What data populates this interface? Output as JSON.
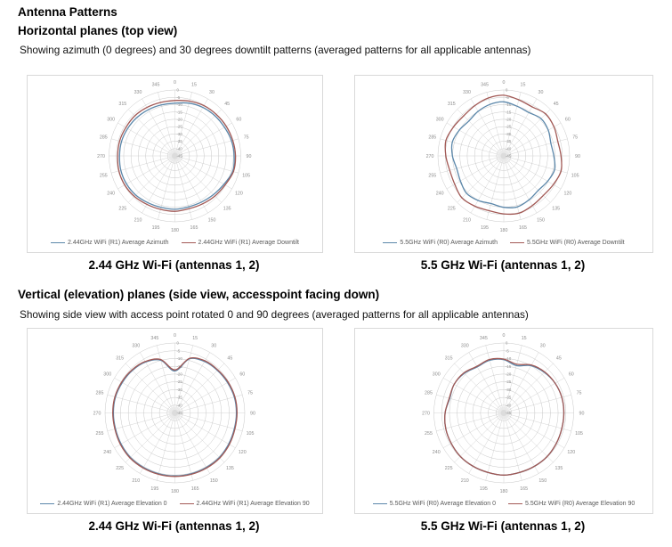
{
  "page": {
    "title": "Antenna Patterns",
    "sections": [
      {
        "heading": "Horizontal planes (top view)",
        "subheading": "Showing azimuth (0 degrees) and 30 degrees downtilt patterns (averaged patterns for all applicable antennas)"
      },
      {
        "heading": "Vertical (elevation) planes (side view, accesspoint facing down)",
        "subheading": "Showing side view with access point rotated 0 and 90 degrees (averaged patterns for all applicable antennas)"
      }
    ]
  },
  "colors": {
    "series_blue": "#5b87aa",
    "series_red": "#a25955",
    "grid_ring": "#c8c8c8",
    "grid_spoke": "#d4d4d4",
    "axis_label": "#8c8c8c",
    "box_border": "#d9d9d9",
    "legend_text": "#595959"
  },
  "chart_data": [
    {
      "id": "wifi-2g4-horizontal",
      "type": "line",
      "polar": true,
      "caption": "2.44 GHz Wi-Fi (antennas 1, 2)",
      "angle_ticks_deg": [
        0,
        15,
        30,
        45,
        60,
        75,
        90,
        105,
        120,
        135,
        150,
        165,
        180,
        195,
        210,
        225,
        240,
        255,
        270,
        285,
        300,
        315,
        330,
        345
      ],
      "radial_ticks_db": [
        0,
        -5,
        -10,
        -15,
        -20,
        -25,
        -30,
        -35,
        -40,
        -45
      ],
      "rlim": [
        -45,
        0
      ],
      "grid": true,
      "legend_position": "bottom",
      "series": [
        {
          "name": "2.44GHz WiFi (R1) Average Azimuth",
          "color": "#5b87aa",
          "values_db": [
            -9,
            -7.7,
            -6.8,
            -6.3,
            -5.9,
            -5,
            -4.5,
            -4.1,
            -6.3,
            -7.7,
            -8.6,
            -9,
            -8.6,
            -8.6,
            -8.1,
            -7.2,
            -6.8,
            -6.8,
            -7.2,
            -7.2,
            -7.7,
            -8.1,
            -8.6,
            -9
          ]
        },
        {
          "name": "2.44GHz WiFi (R1) Average Downtilt",
          "color": "#a25955",
          "values_db": [
            -7.2,
            -6.3,
            -5.4,
            -5,
            -4.5,
            -4.1,
            -3.6,
            -3.6,
            -5.4,
            -6.3,
            -7.2,
            -7.7,
            -7.2,
            -7.2,
            -6.8,
            -5.9,
            -5.4,
            -5.4,
            -5.9,
            -5.9,
            -6.3,
            -6.3,
            -6.8,
            -7.2
          ]
        }
      ]
    },
    {
      "id": "wifi-5g5-horizontal",
      "type": "line",
      "polar": true,
      "caption": "5.5 GHz Wi-Fi (antennas 1, 2)",
      "angle_ticks_deg": [
        0,
        15,
        30,
        45,
        60,
        75,
        90,
        105,
        120,
        135,
        150,
        165,
        180,
        195,
        210,
        225,
        240,
        255,
        270,
        285,
        300,
        315,
        330,
        345
      ],
      "radial_ticks_db": [
        0,
        -5,
        -10,
        -15,
        -20,
        -25,
        -30,
        -35,
        -40,
        -45
      ],
      "rlim": [
        -45,
        0
      ],
      "grid": true,
      "legend_position": "bottom",
      "series": [
        {
          "name": "5.5GHz WiFi (R0) Average Azimuth",
          "color": "#5b87aa",
          "values_db": [
            -8.1,
            -9.9,
            -10.8,
            -9,
            -9.9,
            -11.7,
            -10.8,
            -9,
            -10.4,
            -11.7,
            -10.4,
            -9,
            -9.9,
            -11.3,
            -9.9,
            -9,
            -10.8,
            -11.7,
            -9.9,
            -8.6,
            -9.9,
            -11.3,
            -9.9,
            -8.6
          ]
        },
        {
          "name": "5.5GHz WiFi (R0) Average Downtilt",
          "color": "#a25955",
          "values_db": [
            -3.6,
            -5.4,
            -6.3,
            -4.5,
            -5.4,
            -6.8,
            -5.9,
            -4.5,
            -5.9,
            -6.8,
            -5.9,
            -4.5,
            -5.4,
            -6.3,
            -5.4,
            -4.5,
            -6.3,
            -6.8,
            -5.4,
            -4.1,
            -5.4,
            -6.3,
            -5.4,
            -4.1
          ]
        }
      ]
    },
    {
      "id": "wifi-2g4-vertical",
      "type": "line",
      "polar": true,
      "caption": "2.44 GHz Wi-Fi (antennas 1, 2)",
      "angle_ticks_deg": [
        0,
        15,
        30,
        45,
        60,
        75,
        90,
        105,
        120,
        135,
        150,
        165,
        180,
        195,
        210,
        225,
        240,
        255,
        270,
        285,
        300,
        315,
        330,
        345
      ],
      "radial_ticks_db": [
        0,
        -5,
        -10,
        -15,
        -20,
        -25,
        -30,
        -35,
        -40,
        -45
      ],
      "rlim": [
        -45,
        0
      ],
      "grid": true,
      "legend_position": "bottom",
      "series": [
        {
          "name": "2.44GHz WiFi (R1) Average Elevation 0",
          "color": "#5b87aa",
          "values_db": [
            -18,
            -9,
            -6.8,
            -6.3,
            -5.9,
            -5.4,
            -5.4,
            -5.4,
            -5,
            -4.5,
            -4.5,
            -4.5,
            -4.5,
            -4.5,
            -4.5,
            -4.5,
            -5,
            -5.4,
            -5.4,
            -5.4,
            -5.9,
            -6.3,
            -7.2,
            -9.9
          ]
        },
        {
          "name": "2.44GHz WiFi (R1) Average Elevation 90",
          "color": "#a25955",
          "values_db": [
            -17.3,
            -8.6,
            -6.3,
            -5.9,
            -5.4,
            -5,
            -5,
            -5,
            -4.5,
            -4.1,
            -4.1,
            -4.1,
            -4.1,
            -4.1,
            -4.1,
            -4.1,
            -4.5,
            -5,
            -5,
            -5,
            -5.4,
            -5.9,
            -6.8,
            -9.4
          ]
        }
      ]
    },
    {
      "id": "wifi-5g5-vertical",
      "type": "line",
      "polar": true,
      "caption": "5.5 GHz Wi-Fi (antennas 1, 2)",
      "angle_ticks_deg": [
        0,
        15,
        30,
        45,
        60,
        75,
        90,
        105,
        120,
        135,
        150,
        165,
        180,
        195,
        210,
        225,
        240,
        255,
        270,
        285,
        300,
        315,
        330,
        345
      ],
      "radial_ticks_db": [
        0,
        -5,
        -10,
        -15,
        -20,
        -25,
        -30,
        -35,
        -40,
        -45
      ],
      "rlim": [
        -45,
        0
      ],
      "grid": true,
      "legend_position": "bottom",
      "series": [
        {
          "name": "5.5GHz WiFi (R0) Average Elevation 0",
          "color": "#5b87aa",
          "values_db": [
            -10.8,
            -13.5,
            -9.9,
            -8.1,
            -6.8,
            -6.3,
            -6.3,
            -6.3,
            -5.9,
            -5.4,
            -5.4,
            -5.4,
            -5,
            -5.4,
            -5.4,
            -5.4,
            -5.9,
            -6.3,
            -7.2,
            -9,
            -8.1,
            -9,
            -10.8,
            -9.9
          ]
        },
        {
          "name": "5.5GHz WiFi (R0) Average Elevation 90",
          "color": "#a25955",
          "values_db": [
            -10.4,
            -12.6,
            -9.4,
            -7.7,
            -6.8,
            -6.3,
            -6.3,
            -6.3,
            -5.9,
            -5.4,
            -5.4,
            -5.4,
            -5,
            -5.4,
            -5.4,
            -5.4,
            -5.9,
            -6.3,
            -7.2,
            -8.6,
            -8.1,
            -8.6,
            -10.4,
            -9.4
          ]
        }
      ]
    }
  ]
}
